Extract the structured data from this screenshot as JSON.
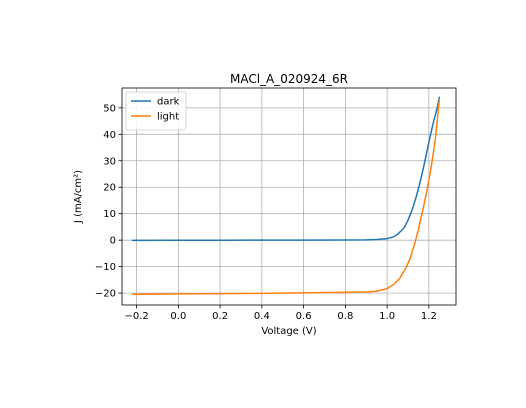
{
  "chart_data": {
    "type": "line",
    "title": "MACl_A_020924_6R",
    "xlabel": "Voltage (V)",
    "ylabel": "J (mA/cm²)",
    "xlim": [
      -0.27,
      1.33
    ],
    "ylim": [
      -24.5,
      57.5
    ],
    "xticks": [
      -0.2,
      0.0,
      0.2,
      0.4,
      0.6,
      0.8,
      1.0,
      1.2
    ],
    "xtick_labels": [
      "−0.2",
      "0.0",
      "0.2",
      "0.4",
      "0.6",
      "0.8",
      "1.0",
      "1.2"
    ],
    "yticks": [
      -20,
      -10,
      0,
      10,
      20,
      30,
      40,
      50
    ],
    "ytick_labels": [
      "−20",
      "−10",
      "0",
      "10",
      "20",
      "30",
      "40",
      "50"
    ],
    "grid": true,
    "legend": "top-left",
    "series": [
      {
        "name": "dark",
        "color": "#1f77b4",
        "points": [
          [
            -0.22,
            -0.1
          ],
          [
            0.0,
            -0.05
          ],
          [
            0.2,
            -0.02
          ],
          [
            0.4,
            0.0
          ],
          [
            0.6,
            0.0
          ],
          [
            0.8,
            0.05
          ],
          [
            0.9,
            0.1
          ],
          [
            0.95,
            0.25
          ],
          [
            1.0,
            0.6
          ],
          [
            1.03,
            1.2
          ],
          [
            1.05,
            2.2
          ],
          [
            1.08,
            4.5
          ],
          [
            1.1,
            7.5
          ],
          [
            1.12,
            11.5
          ],
          [
            1.14,
            16.5
          ],
          [
            1.16,
            22.5
          ],
          [
            1.18,
            29.5
          ],
          [
            1.2,
            37.0
          ],
          [
            1.22,
            44.0
          ],
          [
            1.24,
            50.0
          ],
          [
            1.25,
            54.0
          ]
        ]
      },
      {
        "name": "light",
        "color": "#ff7f0e",
        "points": [
          [
            -0.22,
            -20.5
          ],
          [
            0.0,
            -20.3
          ],
          [
            0.2,
            -20.2
          ],
          [
            0.4,
            -20.1
          ],
          [
            0.6,
            -19.9
          ],
          [
            0.8,
            -19.7
          ],
          [
            0.9,
            -19.6
          ],
          [
            0.95,
            -19.3
          ],
          [
            1.0,
            -18.3
          ],
          [
            1.03,
            -16.8
          ],
          [
            1.06,
            -14.5
          ],
          [
            1.09,
            -10.5
          ],
          [
            1.11,
            -7.0
          ],
          [
            1.13,
            -2.0
          ],
          [
            1.15,
            4.0
          ],
          [
            1.17,
            11.0
          ],
          [
            1.19,
            18.5
          ],
          [
            1.21,
            27.0
          ],
          [
            1.23,
            37.5
          ],
          [
            1.25,
            53.0
          ]
        ]
      }
    ]
  }
}
